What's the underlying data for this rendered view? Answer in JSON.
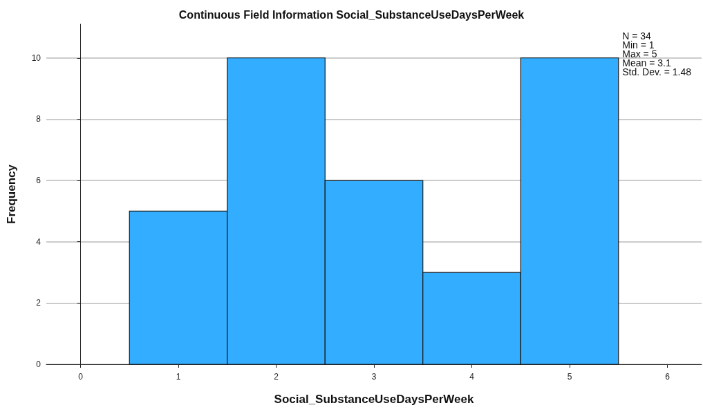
{
  "chart_data": {
    "type": "histogram",
    "title": "Continuous Field Information Social_SubstanceUseDaysPerWeek",
    "xlabel": "Social_SubstanceUseDaysPerWeek",
    "ylabel": "Frequency",
    "bins": [
      0.5,
      1.5,
      2.5,
      3.5,
      4.5,
      5.5
    ],
    "values": [
      5,
      10,
      6,
      3,
      10
    ],
    "color": "#33adff",
    "xlim": [
      -0.35,
      6.35
    ],
    "xticks": [
      0,
      1,
      2,
      3,
      4,
      5,
      6
    ],
    "ylim": [
      0,
      11.1
    ],
    "yticks": [
      0,
      2,
      4,
      6,
      8,
      10
    ],
    "grid": "y",
    "annotations": [
      "N = 34",
      "Min = 1",
      "Max = 5",
      "Mean = 3.1",
      "Std. Dev. = 1.48"
    ]
  }
}
